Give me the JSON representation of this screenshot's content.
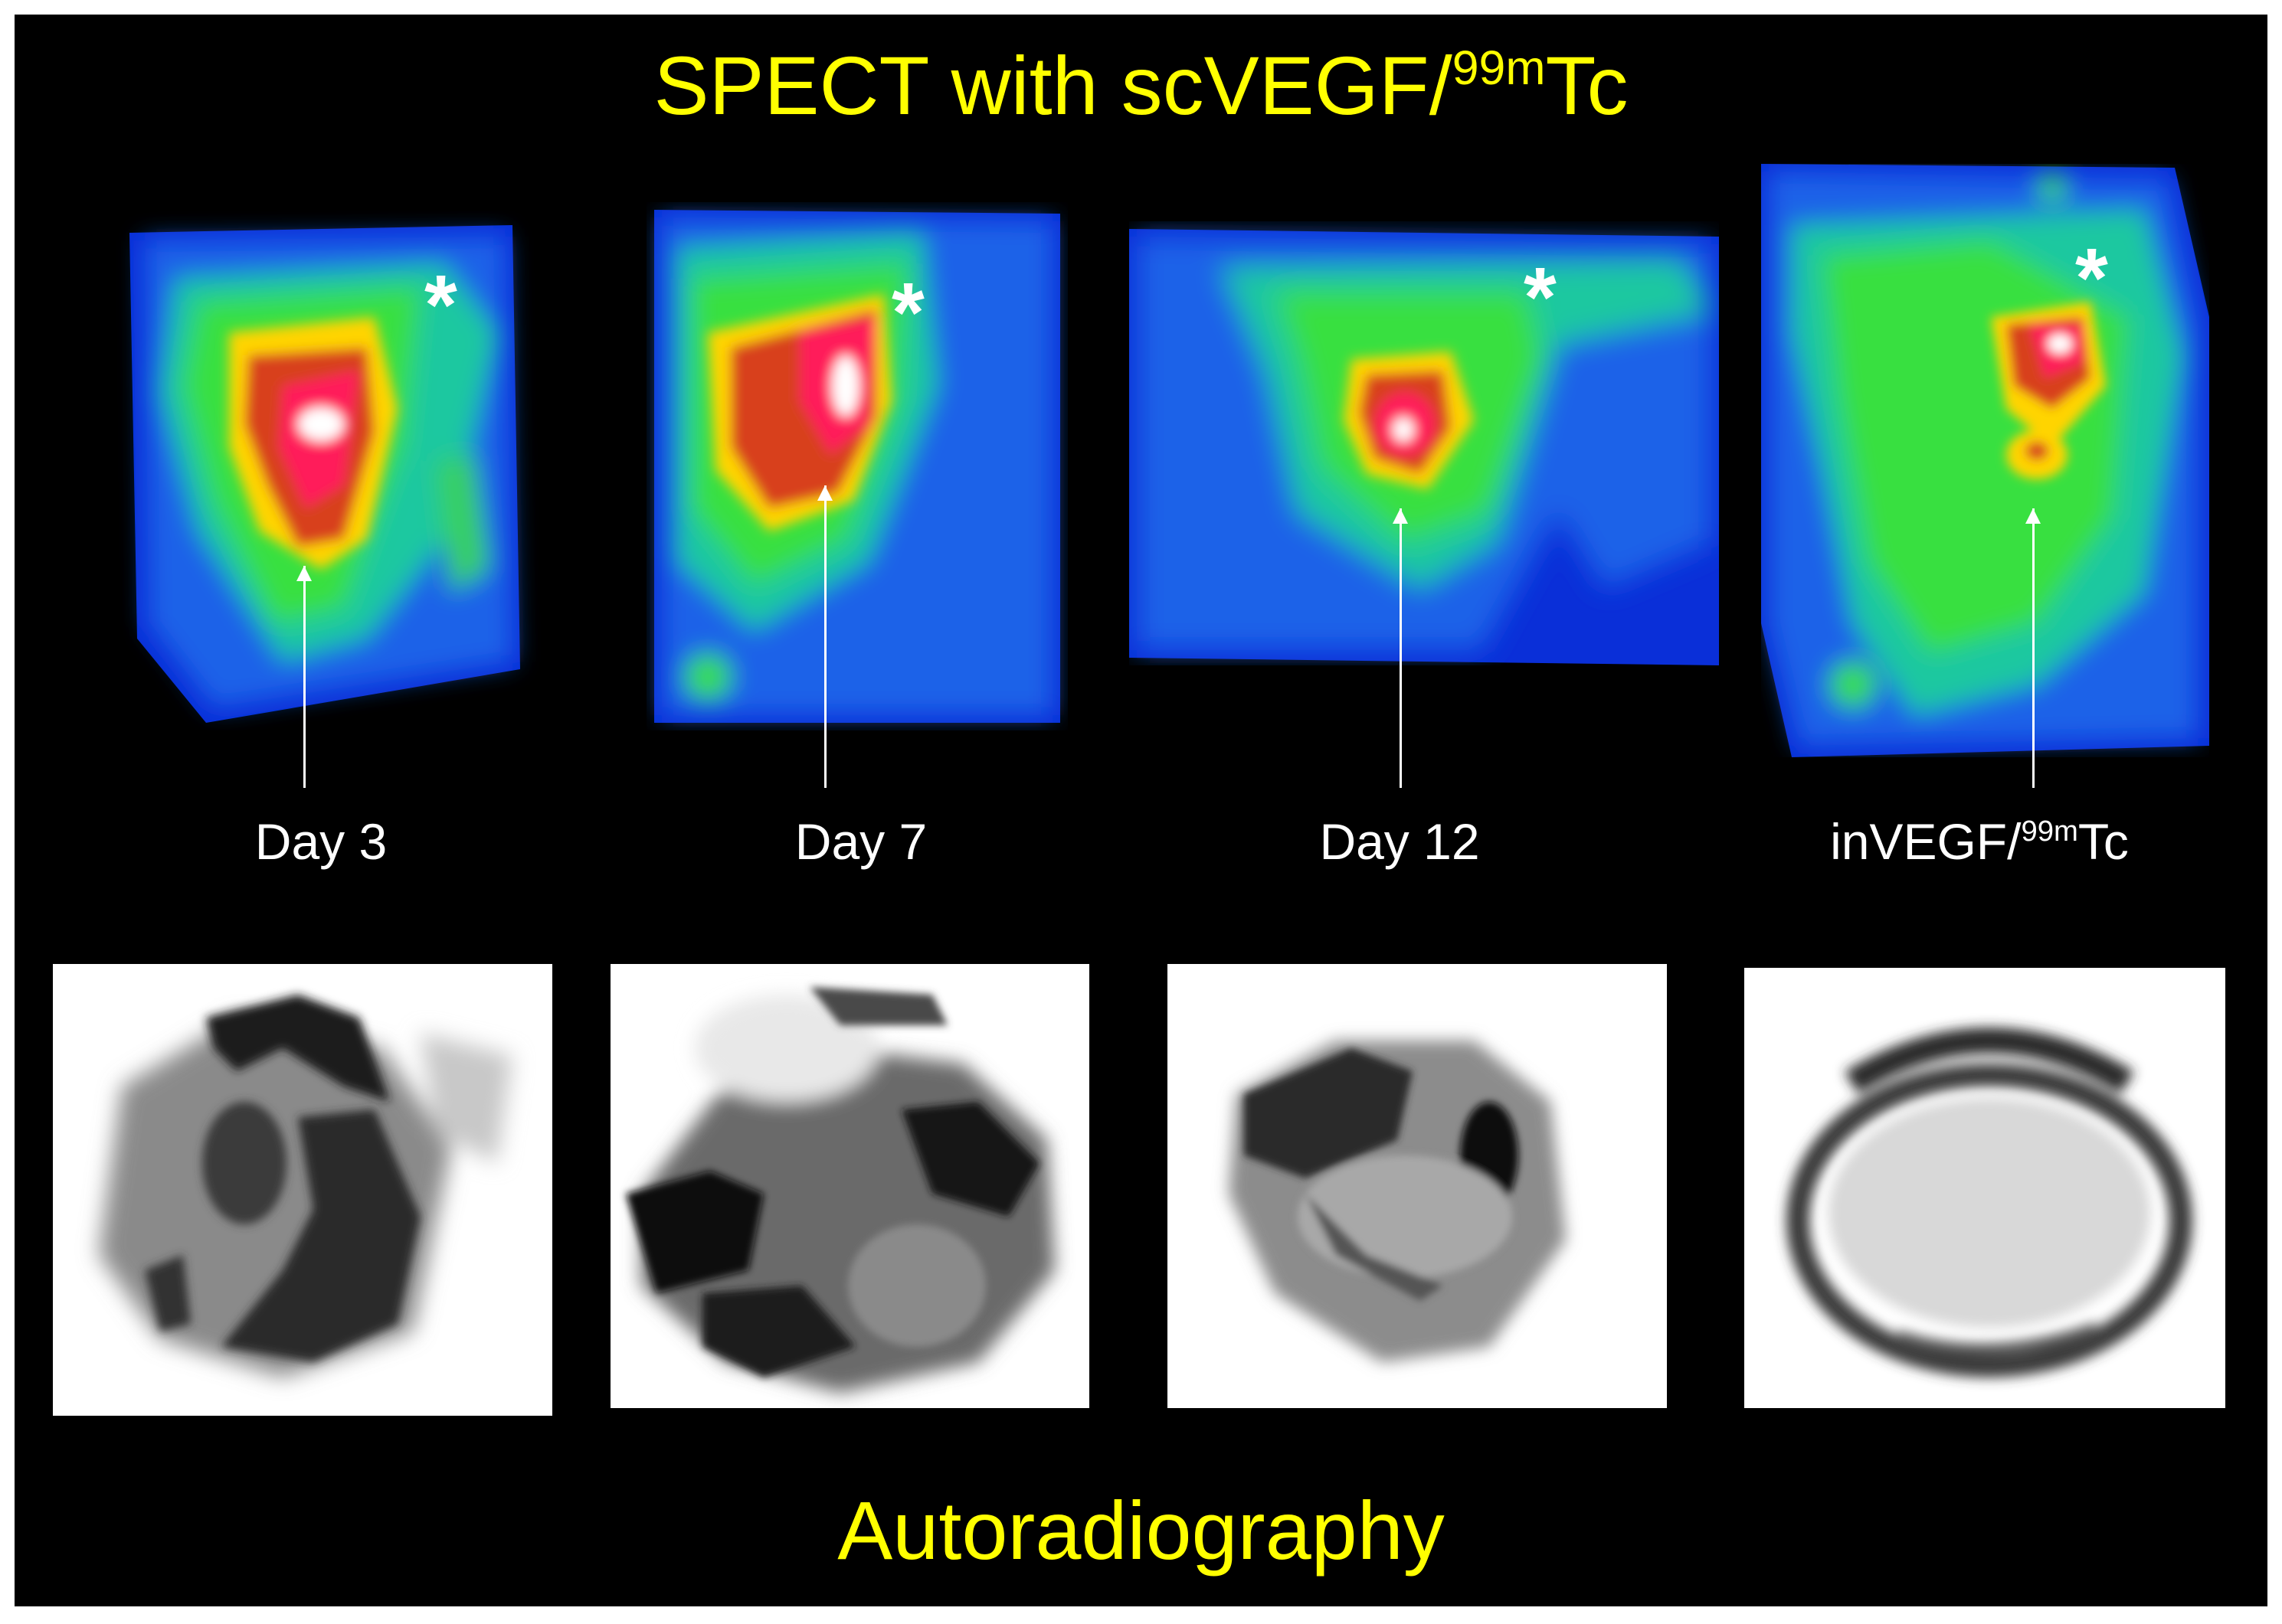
{
  "figure": {
    "title": {
      "prefix": "SPECT with scVEGF/",
      "superscript": "99m",
      "suffix": "Tc"
    },
    "marker": "*",
    "panels": [
      {
        "label": "Day 3"
      },
      {
        "label": "Day 7"
      },
      {
        "label": "Day 12"
      },
      {
        "label_prefix": "inVEGF/",
        "label_superscript": "99m",
        "label_suffix": "Tc"
      }
    ],
    "footer": "Autoradiography",
    "colors": {
      "background": "#000000",
      "title_text": "#ffff00",
      "label_text": "#ffffff"
    }
  }
}
